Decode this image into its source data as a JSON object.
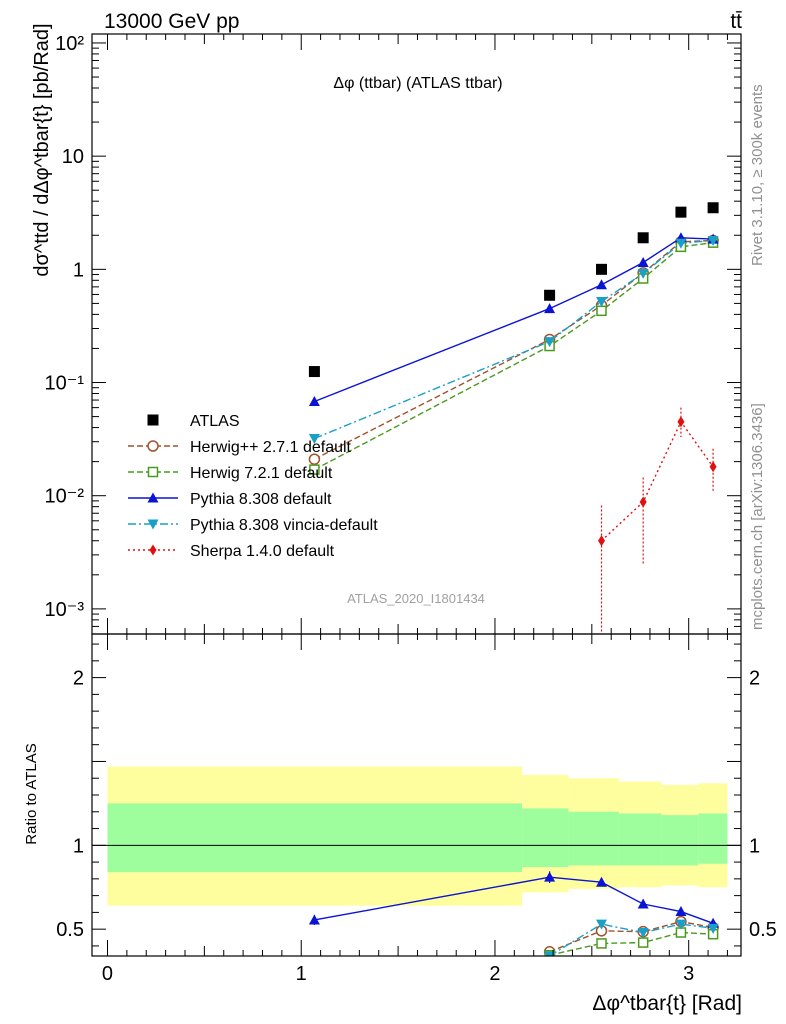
{
  "header": {
    "energy_label": "13000 GeV pp",
    "process_label": "tt̄"
  },
  "side_labels": {
    "rivet": "Rivet 3.1.10, ≥ 300k events",
    "mcplots": "mcplots.cern.ch [arXiv:1306.3436]"
  },
  "chart_data": [
    {
      "type": "scatter",
      "panel": "main",
      "title": "Δφ (ttbar) (ATLAS ttbar)",
      "watermark": "ATLAS_2020_I1801434",
      "ylabel": "dσ^ttd / dΔφ^tbar{t} [pb/Rad]",
      "yscale": "log",
      "ylim": [
        0.0006,
        120
      ],
      "xlim": [
        -0.08,
        3.27
      ],
      "y_ticks": [
        {
          "value": 0.001,
          "label": "10⁻³"
        },
        {
          "value": 0.01,
          "label": "10⁻²"
        },
        {
          "value": 0.1,
          "label": "10⁻¹"
        },
        {
          "value": 1,
          "label": "1"
        },
        {
          "value": 10,
          "label": "10"
        },
        {
          "value": 100,
          "label": "10²"
        }
      ],
      "legend_position": "left",
      "series": [
        {
          "name": "ATLAS",
          "color": "#000000",
          "marker": "square-filled",
          "line": "none",
          "x": [
            1.068,
            2.282,
            2.55,
            2.765,
            2.96,
            3.126
          ],
          "y": [
            0.125,
            0.59,
            1.0,
            1.9,
            3.2,
            3.5
          ]
        },
        {
          "name": "Herwig++ 2.7.1 default",
          "color": "#a0522d",
          "marker": "circle-open",
          "line": "dashed",
          "x": [
            1.068,
            2.282,
            2.55,
            2.765,
            2.96,
            3.126
          ],
          "y": [
            0.021,
            0.24,
            0.48,
            0.93,
            1.75,
            1.8
          ]
        },
        {
          "name": "Herwig 7.2.1 default",
          "color": "#4a9a1e",
          "marker": "square-open",
          "line": "dashed",
          "x": [
            1.068,
            2.282,
            2.55,
            2.765,
            2.96,
            3.126
          ],
          "y": [
            0.017,
            0.21,
            0.43,
            0.83,
            1.58,
            1.72
          ]
        },
        {
          "name": "Pythia 8.308 default",
          "color": "#0a14d2",
          "marker": "triangle-up",
          "line": "solid",
          "x": [
            1.068,
            2.282,
            2.55,
            2.765,
            2.96,
            3.126
          ],
          "y": [
            0.068,
            0.45,
            0.73,
            1.15,
            1.9,
            1.85
          ]
        },
        {
          "name": "Pythia 8.308 vincia-default",
          "color": "#1aa0c8",
          "marker": "triangle-down",
          "line": "dashdot",
          "x": [
            1.068,
            2.282,
            2.55,
            2.765,
            2.96,
            3.126
          ],
          "y": [
            0.032,
            0.23,
            0.52,
            0.92,
            1.7,
            1.8
          ]
        },
        {
          "name": "Sherpa 1.4.0 default",
          "color": "#e01010",
          "marker": "diamond",
          "line": "dotted",
          "x": [
            2.55,
            2.765,
            2.96,
            3.126
          ],
          "y": [
            0.004,
            0.0088,
            0.045,
            0.018
          ],
          "ylow": [
            0.0006,
            0.0025,
            0.033,
            0.011
          ],
          "yhigh": [
            0.0082,
            0.0145,
            0.06,
            0.026
          ]
        }
      ]
    },
    {
      "type": "line",
      "panel": "ratio",
      "ylabel": "Ratio to ATLAS",
      "xlabel": "Δφ^tbar{t} [Rad]",
      "ylim": [
        0.34,
        2.26
      ],
      "xlim": [
        -0.08,
        3.27
      ],
      "x_ticks": [
        0,
        1,
        2,
        3
      ],
      "y_ticks": [
        0.5,
        1,
        2
      ],
      "bands": {
        "edges": [
          0.0,
          2.14,
          2.38,
          2.64,
          2.86,
          3.05,
          3.2
        ],
        "outer_low": [
          0.64,
          0.72,
          0.74,
          0.75,
          0.76,
          0.75
        ],
        "outer_high": [
          1.47,
          1.42,
          1.4,
          1.38,
          1.36,
          1.37
        ],
        "inner_low": [
          0.84,
          0.87,
          0.88,
          0.88,
          0.88,
          0.89
        ],
        "inner_high": [
          1.25,
          1.22,
          1.2,
          1.19,
          1.18,
          1.19
        ],
        "outer_color": "#fffe9e",
        "inner_color": "#9efe9e"
      },
      "series": [
        {
          "name": "Herwig++ 2.7.1 default",
          "x": [
            2.282,
            2.55,
            2.765,
            2.96,
            3.126
          ],
          "y": [
            0.365,
            0.49,
            0.485,
            0.545,
            0.51
          ]
        },
        {
          "name": "Herwig 7.2.1 default",
          "x": [
            2.282,
            2.55,
            2.765,
            2.96,
            3.126
          ],
          "y": [
            0.345,
            0.415,
            0.42,
            0.48,
            0.47
          ]
        },
        {
          "name": "Pythia 8.308 default",
          "x": [
            1.068,
            2.282,
            2.55,
            2.765,
            2.96,
            3.126
          ],
          "y": [
            0.555,
            0.81,
            0.78,
            0.65,
            0.605,
            0.535
          ],
          "yerr": [
            0.03,
            0.035,
            0.025,
            0.02,
            0.02,
            0.02
          ]
        },
        {
          "name": "Pythia 8.308 vincia-default",
          "x": [
            2.282,
            2.55,
            2.765,
            2.96,
            3.126
          ],
          "y": [
            0.34,
            0.53,
            0.48,
            0.53,
            0.505
          ]
        }
      ]
    }
  ]
}
